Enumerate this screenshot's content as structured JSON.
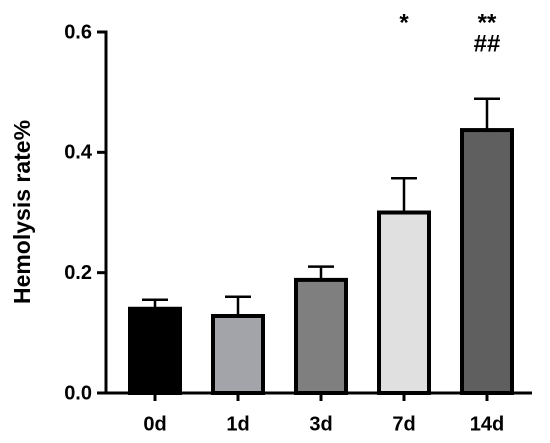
{
  "chart_data": {
    "type": "bar",
    "y_label": "Hemolysis rate%",
    "categories": [
      "0d",
      "1d",
      "3d",
      "7d",
      "14d"
    ],
    "values": [
      0.14,
      0.128,
      0.188,
      0.3,
      0.437
    ],
    "errors": [
      0.015,
      0.032,
      0.022,
      0.057,
      0.052
    ],
    "colors": [
      "#000000",
      "#a3a3aa",
      "#7f7f7f",
      "#e0e0e0",
      "#5f5f5f"
    ],
    "ylim": [
      0,
      0.6
    ],
    "yticks": [
      {
        "value": 0,
        "label": "0.0"
      },
      0.2,
      0.4,
      0.6
    ],
    "annotations": [
      {
        "x": "7d",
        "lines": [
          "*"
        ]
      },
      {
        "x": "14d",
        "lines": [
          "**",
          "##"
        ]
      }
    ]
  }
}
